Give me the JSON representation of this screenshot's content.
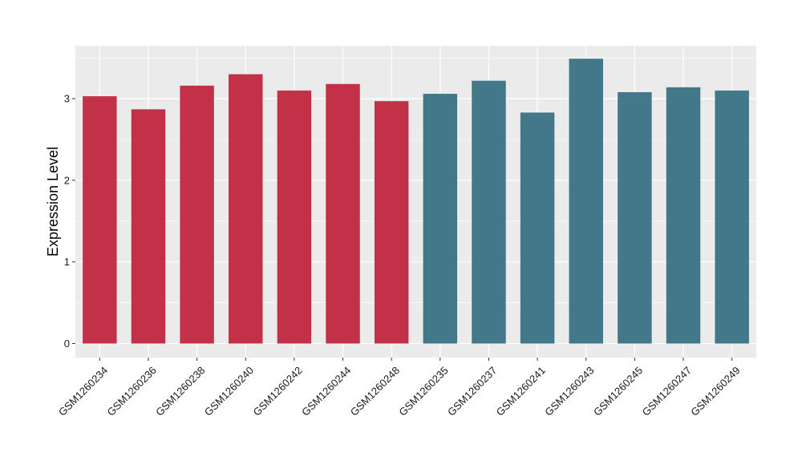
{
  "chart_data": {
    "type": "bar",
    "title": "",
    "xlabel": "",
    "ylabel": "Expression Level",
    "ylim": [
      0,
      3.6
    ],
    "yticks": [
      0,
      1,
      2,
      3
    ],
    "grid": true,
    "legend": "none",
    "categories": [
      "GSM1260234",
      "GSM1260236",
      "GSM1260238",
      "GSM1260240",
      "GSM1260242",
      "GSM1260244",
      "GSM1260248",
      "GSM1260235",
      "GSM1260237",
      "GSM1260241",
      "GSM1260243",
      "GSM1260245",
      "GSM1260247",
      "GSM1260249"
    ],
    "values": [
      3.03,
      2.87,
      3.16,
      3.3,
      3.1,
      3.18,
      2.97,
      3.06,
      3.22,
      2.83,
      3.49,
      3.08,
      3.14,
      3.1
    ],
    "groups": [
      "a",
      "a",
      "a",
      "a",
      "a",
      "a",
      "a",
      "b",
      "b",
      "b",
      "b",
      "b",
      "b",
      "b"
    ],
    "colors": {
      "a": "#c33149",
      "b": "#427889",
      "panel": "#ebebeb",
      "grid": "#ffffff"
    }
  }
}
